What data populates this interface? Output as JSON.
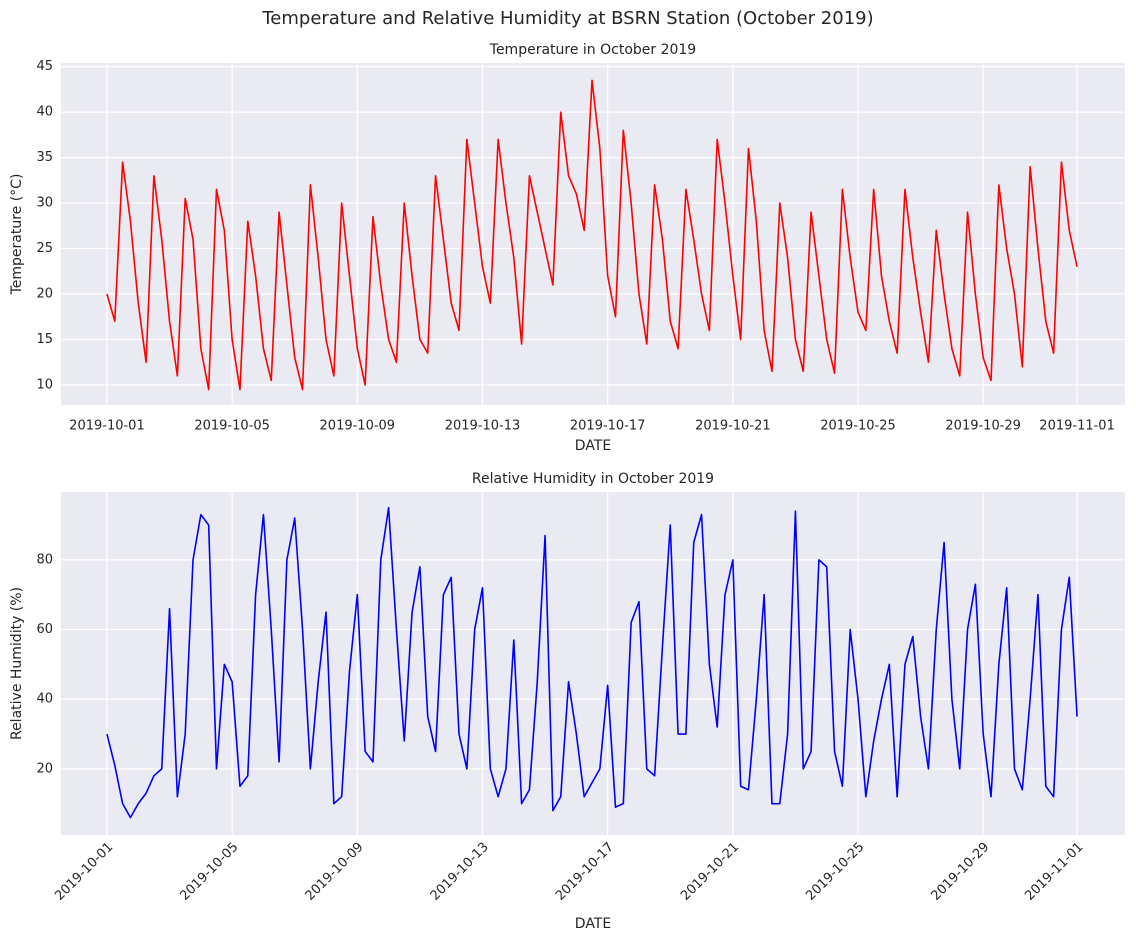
{
  "title": "Temperature and Relative Humidity at BSRN Station (October 2019)",
  "chart_data": [
    {
      "type": "line",
      "title": "Temperature in October 2019",
      "xlabel": "DATE",
      "ylabel": "Temperature (°C)",
      "color": "#ff0000",
      "grid": true,
      "xlim": [
        "2019-09-29T12:45",
        "2019-11-02T12:45"
      ],
      "ylim": [
        7.8,
        45.4
      ],
      "xticks": [
        "2019-10-01",
        "2019-10-05",
        "2019-10-09",
        "2019-10-13",
        "2019-10-17",
        "2019-10-21",
        "2019-10-25",
        "2019-10-29",
        "2019-11-01"
      ],
      "yticks": [
        10,
        15,
        20,
        25,
        30,
        35,
        40,
        45
      ],
      "x": [
        "2019-10-01T00:00",
        "2019-10-01T06:00",
        "2019-10-01T12:00",
        "2019-10-01T18:00",
        "2019-10-02T00:00",
        "2019-10-02T06:00",
        "2019-10-02T12:00",
        "2019-10-02T18:00",
        "2019-10-03T00:00",
        "2019-10-03T06:00",
        "2019-10-03T12:00",
        "2019-10-03T18:00",
        "2019-10-04T00:00",
        "2019-10-04T06:00",
        "2019-10-04T12:00",
        "2019-10-04T18:00",
        "2019-10-05T00:00",
        "2019-10-05T06:00",
        "2019-10-05T12:00",
        "2019-10-05T18:00",
        "2019-10-06T00:00",
        "2019-10-06T06:00",
        "2019-10-06T12:00",
        "2019-10-06T18:00",
        "2019-10-07T00:00",
        "2019-10-07T06:00",
        "2019-10-07T12:00",
        "2019-10-07T18:00",
        "2019-10-08T00:00",
        "2019-10-08T06:00",
        "2019-10-08T12:00",
        "2019-10-08T18:00",
        "2019-10-09T00:00",
        "2019-10-09T06:00",
        "2019-10-09T12:00",
        "2019-10-09T18:00",
        "2019-10-10T00:00",
        "2019-10-10T06:00",
        "2019-10-10T12:00",
        "2019-10-10T18:00",
        "2019-10-11T00:00",
        "2019-10-11T06:00",
        "2019-10-11T12:00",
        "2019-10-11T18:00",
        "2019-10-12T00:00",
        "2019-10-12T06:00",
        "2019-10-12T12:00",
        "2019-10-12T18:00",
        "2019-10-13T00:00",
        "2019-10-13T06:00",
        "2019-10-13T12:00",
        "2019-10-13T18:00",
        "2019-10-14T00:00",
        "2019-10-14T06:00",
        "2019-10-14T12:00",
        "2019-10-14T18:00",
        "2019-10-15T00:00",
        "2019-10-15T06:00",
        "2019-10-15T12:00",
        "2019-10-15T18:00",
        "2019-10-16T00:00",
        "2019-10-16T06:00",
        "2019-10-16T12:00",
        "2019-10-16T18:00",
        "2019-10-17T00:00",
        "2019-10-17T06:00",
        "2019-10-17T12:00",
        "2019-10-17T18:00",
        "2019-10-18T00:00",
        "2019-10-18T06:00",
        "2019-10-18T12:00",
        "2019-10-18T18:00",
        "2019-10-19T00:00",
        "2019-10-19T06:00",
        "2019-10-19T12:00",
        "2019-10-19T18:00",
        "2019-10-20T00:00",
        "2019-10-20T06:00",
        "2019-10-20T12:00",
        "2019-10-20T18:00",
        "2019-10-21T00:00",
        "2019-10-21T06:00",
        "2019-10-21T12:00",
        "2019-10-21T18:00",
        "2019-10-22T00:00",
        "2019-10-22T06:00",
        "2019-10-22T12:00",
        "2019-10-22T18:00",
        "2019-10-23T00:00",
        "2019-10-23T06:00",
        "2019-10-23T12:00",
        "2019-10-23T18:00",
        "2019-10-24T00:00",
        "2019-10-24T06:00",
        "2019-10-24T12:00",
        "2019-10-24T18:00",
        "2019-10-25T00:00",
        "2019-10-25T06:00",
        "2019-10-25T12:00",
        "2019-10-25T18:00",
        "2019-10-26T00:00",
        "2019-10-26T06:00",
        "2019-10-26T12:00",
        "2019-10-26T18:00",
        "2019-10-27T00:00",
        "2019-10-27T06:00",
        "2019-10-27T12:00",
        "2019-10-27T18:00",
        "2019-10-28T00:00",
        "2019-10-28T06:00",
        "2019-10-28T12:00",
        "2019-10-28T18:00",
        "2019-10-29T00:00",
        "2019-10-29T06:00",
        "2019-10-29T12:00",
        "2019-10-29T18:00",
        "2019-10-30T00:00",
        "2019-10-30T06:00",
        "2019-10-30T12:00",
        "2019-10-30T18:00",
        "2019-10-31T00:00",
        "2019-10-31T06:00",
        "2019-10-31T12:00",
        "2019-10-31T18:00",
        "2019-11-01T00:00"
      ],
      "values": [
        20,
        17,
        34.5,
        28,
        19,
        12.5,
        33,
        26,
        17,
        11,
        30.5,
        26,
        14,
        9.5,
        31.5,
        27,
        15,
        9.5,
        28,
        22,
        14,
        10.5,
        29,
        21,
        13,
        9.5,
        32,
        24,
        15,
        11,
        30,
        22,
        14,
        10,
        28.5,
        21,
        15,
        12.5,
        30,
        22,
        15,
        13.5,
        33,
        26,
        19,
        16,
        37,
        30,
        23,
        19,
        37,
        30,
        24,
        14.5,
        33,
        29,
        25,
        21,
        40,
        33,
        31,
        27,
        43.5,
        36,
        22,
        17.5,
        38,
        30,
        20,
        14.5,
        32,
        26,
        17,
        14,
        31.5,
        26,
        20,
        16,
        37,
        30,
        22,
        15,
        36,
        28,
        16,
        11.5,
        30,
        24,
        15,
        11.5,
        29,
        22,
        15,
        11.3,
        31.5,
        24,
        18,
        16,
        31.5,
        22,
        17,
        13.5,
        31.5,
        24,
        18,
        12.5,
        27,
        20,
        14,
        11,
        29,
        20,
        13,
        10.5,
        32,
        25,
        20,
        12,
        34,
        25,
        17,
        13.5,
        34.5,
        27,
        23
      ]
    },
    {
      "type": "line",
      "title": "Relative Humidity in October 2019",
      "xlabel": "DATE",
      "ylabel": "Relative Humidity (%)",
      "color": "#0000ff",
      "grid": true,
      "xlim": [
        "2019-09-29T12:45",
        "2019-11-02T12:45"
      ],
      "ylim": [
        1,
        99.5
      ],
      "xticks": [
        "2019-10-01",
        "2019-10-05",
        "2019-10-09",
        "2019-10-13",
        "2019-10-17",
        "2019-10-21",
        "2019-10-25",
        "2019-10-29",
        "2019-11-01"
      ],
      "yticks": [
        20,
        40,
        60,
        80
      ],
      "x": [
        "2019-10-01T00:00",
        "2019-10-01T06:00",
        "2019-10-01T12:00",
        "2019-10-01T18:00",
        "2019-10-02T00:00",
        "2019-10-02T06:00",
        "2019-10-02T12:00",
        "2019-10-02T18:00",
        "2019-10-03T00:00",
        "2019-10-03T06:00",
        "2019-10-03T12:00",
        "2019-10-03T18:00",
        "2019-10-04T00:00",
        "2019-10-04T06:00",
        "2019-10-04T12:00",
        "2019-10-04T18:00",
        "2019-10-05T00:00",
        "2019-10-05T06:00",
        "2019-10-05T12:00",
        "2019-10-05T18:00",
        "2019-10-06T00:00",
        "2019-10-06T06:00",
        "2019-10-06T12:00",
        "2019-10-06T18:00",
        "2019-10-07T00:00",
        "2019-10-07T06:00",
        "2019-10-07T12:00",
        "2019-10-07T18:00",
        "2019-10-08T00:00",
        "2019-10-08T06:00",
        "2019-10-08T12:00",
        "2019-10-08T18:00",
        "2019-10-09T00:00",
        "2019-10-09T06:00",
        "2019-10-09T12:00",
        "2019-10-09T18:00",
        "2019-10-10T00:00",
        "2019-10-10T06:00",
        "2019-10-10T12:00",
        "2019-10-10T18:00",
        "2019-10-11T00:00",
        "2019-10-11T06:00",
        "2019-10-11T12:00",
        "2019-10-11T18:00",
        "2019-10-12T00:00",
        "2019-10-12T06:00",
        "2019-10-12T12:00",
        "2019-10-12T18:00",
        "2019-10-13T00:00",
        "2019-10-13T06:00",
        "2019-10-13T12:00",
        "2019-10-13T18:00",
        "2019-10-14T00:00",
        "2019-10-14T06:00",
        "2019-10-14T12:00",
        "2019-10-14T18:00",
        "2019-10-15T00:00",
        "2019-10-15T06:00",
        "2019-10-15T12:00",
        "2019-10-15T18:00",
        "2019-10-16T00:00",
        "2019-10-16T06:00",
        "2019-10-16T12:00",
        "2019-10-16T18:00",
        "2019-10-17T00:00",
        "2019-10-17T06:00",
        "2019-10-17T12:00",
        "2019-10-17T18:00",
        "2019-10-18T00:00",
        "2019-10-18T06:00",
        "2019-10-18T12:00",
        "2019-10-18T18:00",
        "2019-10-19T00:00",
        "2019-10-19T06:00",
        "2019-10-19T12:00",
        "2019-10-19T18:00",
        "2019-10-20T00:00",
        "2019-10-20T06:00",
        "2019-10-20T12:00",
        "2019-10-20T18:00",
        "2019-10-21T00:00",
        "2019-10-21T06:00",
        "2019-10-21T12:00",
        "2019-10-21T18:00",
        "2019-10-22T00:00",
        "2019-10-22T06:00",
        "2019-10-22T12:00",
        "2019-10-22T18:00",
        "2019-10-23T00:00",
        "2019-10-23T06:00",
        "2019-10-23T12:00",
        "2019-10-23T18:00",
        "2019-10-24T00:00",
        "2019-10-24T06:00",
        "2019-10-24T12:00",
        "2019-10-24T18:00",
        "2019-10-25T00:00",
        "2019-10-25T06:00",
        "2019-10-25T12:00",
        "2019-10-25T18:00",
        "2019-10-26T00:00",
        "2019-10-26T06:00",
        "2019-10-26T12:00",
        "2019-10-26T18:00",
        "2019-10-27T00:00",
        "2019-10-27T06:00",
        "2019-10-27T12:00",
        "2019-10-27T18:00",
        "2019-10-28T00:00",
        "2019-10-28T06:00",
        "2019-10-28T12:00",
        "2019-10-28T18:00",
        "2019-10-29T00:00",
        "2019-10-29T06:00",
        "2019-10-29T12:00",
        "2019-10-29T18:00",
        "2019-10-30T00:00",
        "2019-10-30T06:00",
        "2019-10-30T12:00",
        "2019-10-30T18:00",
        "2019-10-31T00:00",
        "2019-10-31T06:00",
        "2019-10-31T12:00",
        "2019-10-31T18:00",
        "2019-11-01T00:00"
      ],
      "values": [
        30,
        21,
        10,
        6,
        10,
        13,
        18,
        20,
        66,
        12,
        30,
        80,
        93,
        90,
        20,
        50,
        45,
        15,
        18,
        70,
        93,
        60,
        22,
        80,
        92,
        60,
        20,
        45,
        65,
        10,
        12,
        48,
        70,
        25,
        22,
        80,
        95,
        60,
        28,
        65,
        78,
        35,
        25,
        70,
        75,
        30,
        20,
        60,
        72,
        20,
        12,
        20,
        57,
        10,
        14,
        45,
        87,
        8,
        12,
        45,
        30,
        12,
        16,
        20,
        44,
        9,
        10,
        62,
        68,
        20,
        18,
        55,
        90,
        30,
        30,
        85,
        93,
        50,
        32,
        70,
        80,
        15,
        14,
        40,
        70,
        10,
        10,
        30,
        94,
        20,
        25,
        80,
        78,
        25,
        15,
        60,
        40,
        12,
        28,
        40,
        50,
        12,
        50,
        58,
        35,
        20,
        60,
        85,
        40,
        20,
        60,
        73,
        30,
        12,
        50,
        72,
        20,
        14,
        40,
        70,
        15,
        12,
        60,
        75,
        35
      ]
    }
  ]
}
